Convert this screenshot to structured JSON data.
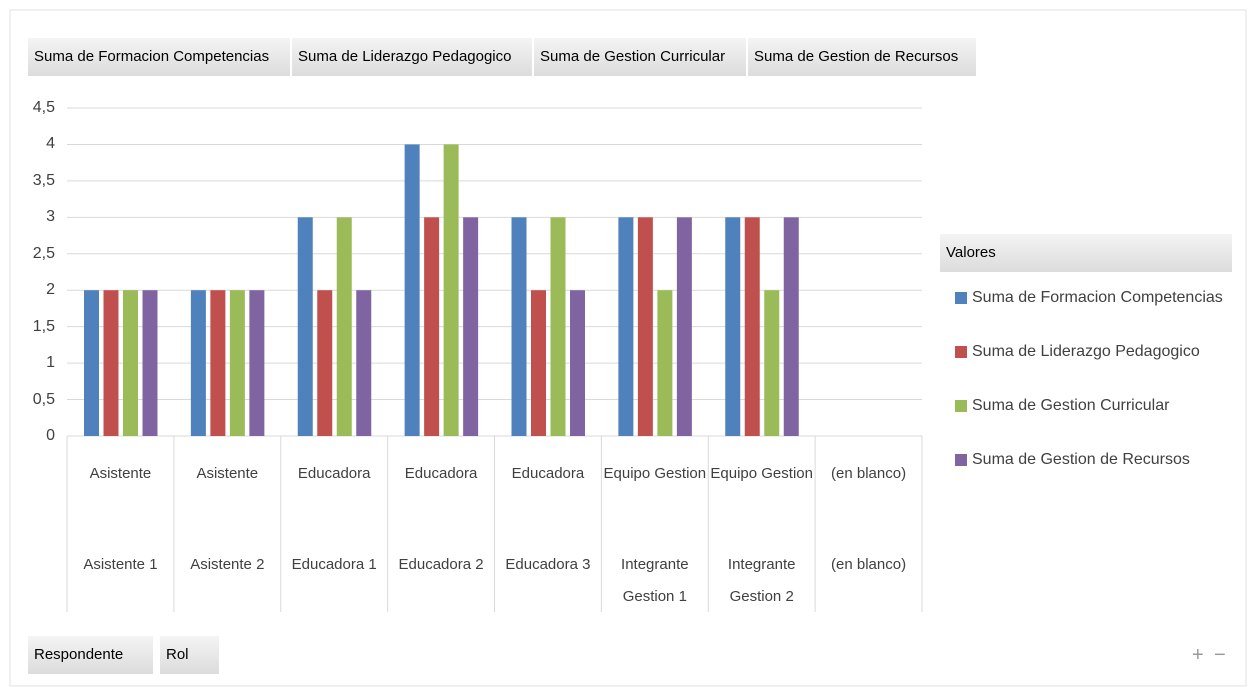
{
  "chart_data": {
    "type": "bar",
    "categories": [
      "Asistente",
      "Asistente",
      "Educadora",
      "Educadora",
      "Educadora",
      "Equipo Gestion",
      "Equipo Gestion",
      "(en blanco)"
    ],
    "groups": [
      "Asistente 1",
      "Asistente 2",
      "Educadora 1",
      "Educadora 2",
      "Educadora 3",
      "Integrante Gestion 1",
      "Integrante Gestion 2",
      "(en blanco)"
    ],
    "series": [
      {
        "name": "Suma de Formacion Competencias",
        "color": "#4f81bd",
        "values": [
          2,
          2,
          3,
          4,
          3,
          3,
          3,
          null
        ]
      },
      {
        "name": "Suma de Liderazgo Pedagogico",
        "color": "#c0504d",
        "values": [
          2,
          2,
          2,
          3,
          2,
          3,
          3,
          null
        ]
      },
      {
        "name": "Suma de Gestion Curricular",
        "color": "#9bbb59",
        "values": [
          2,
          2,
          3,
          4,
          3,
          2,
          2,
          null
        ]
      },
      {
        "name": "Suma de Gestion de Recursos",
        "color": "#8064a2",
        "values": [
          2,
          2,
          2,
          3,
          2,
          3,
          3,
          null
        ]
      }
    ],
    "ylim": [
      0,
      4.5
    ],
    "yticks": [
      0,
      {
        "value": 0.5,
        "label": "0,5"
      },
      1,
      {
        "value": 1.5,
        "label": "1,5"
      },
      2,
      {
        "value": 2.5,
        "label": "2,5"
      },
      3,
      {
        "value": 3.5,
        "label": "3,5"
      },
      4,
      {
        "value": 4.5,
        "label": "4,5"
      }
    ],
    "grid": true,
    "legend_title": "Valores",
    "legend": "right",
    "axis_fields": [
      "Respondente",
      "Rol"
    ],
    "zoom_buttons": [
      "+",
      "−"
    ]
  }
}
